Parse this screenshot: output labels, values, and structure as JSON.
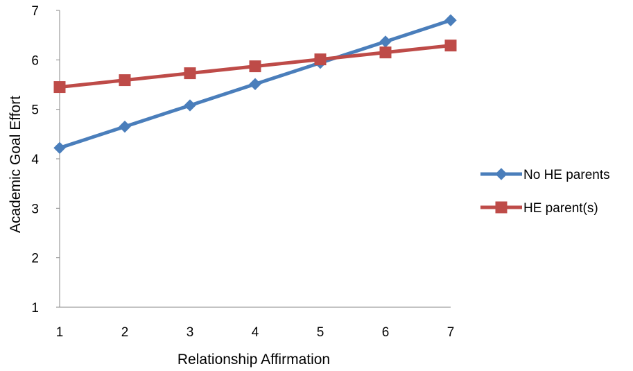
{
  "chart_data": {
    "type": "line",
    "title": "",
    "xlabel": "Relationship Affirmation",
    "ylabel": "Academic Goal Effort",
    "x": [
      1,
      2,
      3,
      4,
      5,
      6,
      7
    ],
    "xlim": [
      1,
      7
    ],
    "ylim": [
      1,
      7
    ],
    "yticks": [
      1,
      2,
      3,
      4,
      5,
      6,
      7
    ],
    "grid": false,
    "legend_position": "right",
    "series": [
      {
        "name": "No HE parents",
        "values": [
          4.22,
          4.65,
          5.08,
          5.51,
          5.94,
          6.37,
          6.8
        ],
        "color": "#4A7EBB",
        "marker": "diamond"
      },
      {
        "name": "HE parent(s)",
        "values": [
          5.45,
          5.59,
          5.73,
          5.87,
          6.01,
          6.15,
          6.29
        ],
        "color": "#BE4B48",
        "marker": "square"
      }
    ]
  }
}
